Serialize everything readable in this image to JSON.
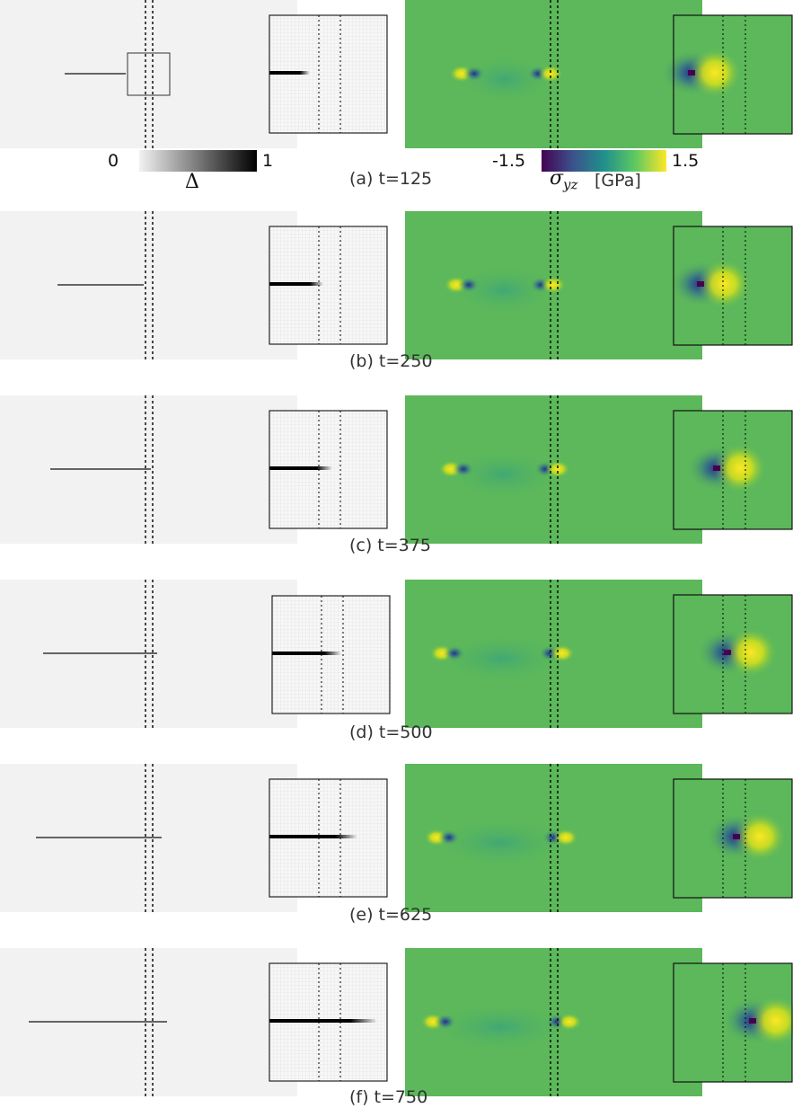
{
  "panels": [
    {
      "id": "a",
      "caption": "(a) t=125",
      "crack_fraction": 0.12
    },
    {
      "id": "b",
      "caption": "(b) t=250",
      "crack_fraction": 0.2
    },
    {
      "id": "c",
      "caption": "(c) t=375",
      "crack_fraction": 0.28
    },
    {
      "id": "d",
      "caption": "(d) t=500",
      "crack_fraction": 0.38
    },
    {
      "id": "e",
      "caption": "(e) t=625",
      "crack_fraction": 0.55
    },
    {
      "id": "f",
      "caption": "(f) t=750",
      "crack_fraction": 0.7
    }
  ],
  "damage_colorbar": {
    "min_label": "0",
    "max_label": "1",
    "symbol": "Δ",
    "from_color": "#f2f2f2",
    "to_color": "#000000"
  },
  "stress_colorbar": {
    "min_label": "-1.5",
    "max_label": "1.5",
    "symbol": "σ",
    "subscript": "yz",
    "unit": "[GPa]",
    "colors": [
      "#440154",
      "#3b528b",
      "#21908c",
      "#5ec962",
      "#fde725"
    ]
  },
  "colors": {
    "damage_background": "#f2f2f2",
    "stress_background": "#5cb85a",
    "stress_negative": "#3a4d90",
    "stress_positive": "#fde725",
    "stress_dark_core": "#440154"
  }
}
